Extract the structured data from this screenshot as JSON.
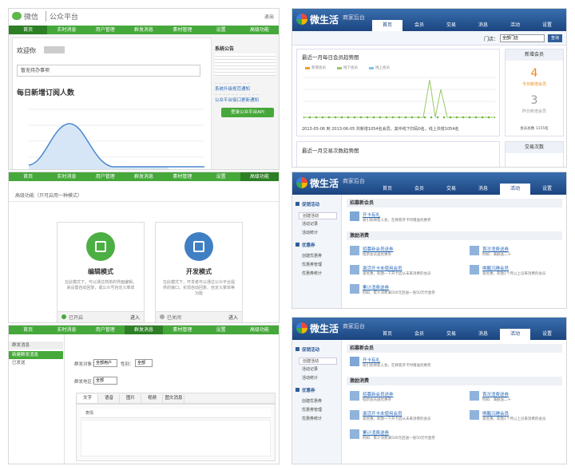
{
  "wechat": {
    "logo": "微信",
    "product": "公众平台",
    "logout": "退出",
    "nav": [
      "首页",
      "实时消息",
      "用户管理",
      "群发消息",
      "素材管理",
      "设置",
      "高级功能"
    ],
    "home": {
      "welcome": "欢迎你",
      "todo": "暂无待办事项",
      "chart_title": "每日新增订阅人数",
      "notice_title": "系统公告",
      "notices": [
        "系统升级规范通知",
        "公众平台接口更新通知"
      ],
      "api_button": "登录公众平台API"
    },
    "advanced": {
      "title": "高级功能（只可启用一种模式）",
      "modes": [
        {
          "name": "编辑模式",
          "desc": "在此模式下，可以通过简单的界面编辑，来设置自动回复，或公众号自定义菜单",
          "status": "已开启",
          "enter": "进入"
        },
        {
          "name": "开发模式",
          "desc": "在此模式下，开发者可以通过公众平台提供的接口，实现自动回复、自定义菜单等功能",
          "status": "已关闭",
          "enter": "进入"
        }
      ]
    },
    "mass": {
      "side_title": "群发消息",
      "side_items": [
        "新建群发消息",
        "已发送"
      ],
      "target_label": "群发对象：",
      "target": "全部用户",
      "gender_label": "性别：",
      "gender": "全部",
      "region_label": "群发地区：",
      "region": "全部",
      "tabs": [
        "文字",
        "语音",
        "图片",
        "视频",
        "图文消息"
      ],
      "emoji": "表情"
    }
  },
  "weishenghuo": {
    "logo": "微生活",
    "sub": "商家后台",
    "nav": [
      "首页",
      "会员",
      "交易",
      "消息",
      "活动",
      "设置"
    ],
    "dashboard": {
      "store_label": "门店：",
      "store": "全部门店",
      "go": "查询",
      "chart_title": "最近一月每日会员趋势图",
      "legend": [
        "新增会员",
        "线下会员",
        "线上会员"
      ],
      "summary": "2013-05-06 到 2013-06-05 共新增1054名会员，其中线下扫码0名，线上共增1054名",
      "chart2_title": "最近一月交易次数趋势图",
      "new_members": "新增会员",
      "today_value": 4,
      "today_label": "今日新增会员",
      "yesterday_value": 3,
      "yesterday_label": "昨日新增会员",
      "total": "会员总数 1155名",
      "trades": "交易次数"
    },
    "promo": {
      "side_sections": [
        {
          "title": "促销活动",
          "items": [
            "创建活动",
            "活动记录",
            "活动统计"
          ]
        },
        {
          "title": "优惠券",
          "items": [
            "创建优惠券",
            "优惠券管理",
            "优惠券统计"
          ]
        }
      ],
      "recruit_title": "招募新会员",
      "recruit": [
        {
          "name": "开卡有礼",
          "desc": "吸引新顾客入会，在顾客开卡时赠送优惠券"
        }
      ],
      "incentive_title": "激励消费",
      "incentives": [
        {
          "name": "招募新会员送券",
          "desc": "给新会员送优惠券"
        },
        {
          "name": "首次消费送券",
          "desc": "例如：满额送二十"
        },
        {
          "name": "激活开卡未使用会员",
          "desc": "发优惠，刺激一下开卡后从未来消费的会员"
        },
        {
          "name": "唤醒沉睡会员",
          "desc": "发优惠，刺激1个月以上没来消费的会员"
        },
        {
          "name": "累计消费送券",
          "desc": "例如：累计消费满500元后送一张50元代金券"
        }
      ]
    }
  }
}
